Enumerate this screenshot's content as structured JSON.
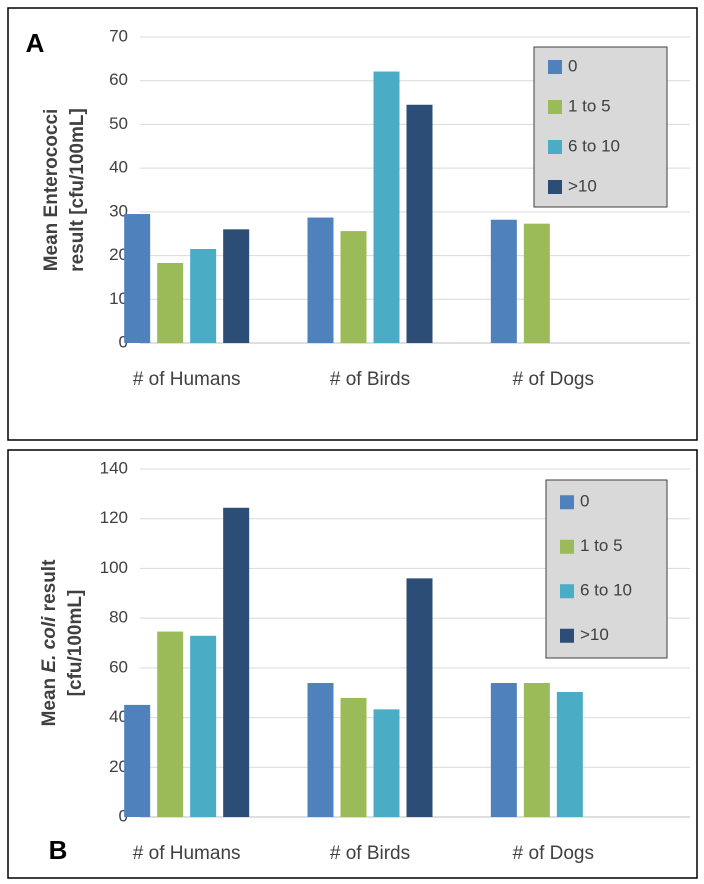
{
  "chart_data": [
    {
      "type": "bar",
      "panel_label": "A",
      "ylabel": [
        [
          {
            "text": "Mean Enterococci"
          }
        ],
        [
          {
            "text": "result [cfu/100mL]"
          }
        ]
      ],
      "categories": [
        "# of Humans",
        "# of Birds",
        "# of Dogs"
      ],
      "series": [
        {
          "name": "0",
          "color": "#4f81bd",
          "values": [
            29.5,
            28.7,
            28.2
          ]
        },
        {
          "name": "1 to 5",
          "color": "#9bbb59",
          "values": [
            18.3,
            25.6,
            27.3
          ]
        },
        {
          "name": "6 to 10",
          "color": "#4bacc6",
          "values": [
            21.5,
            62.1,
            null
          ]
        },
        {
          "name": ">10",
          "color": "#2c4d75",
          "values": [
            26,
            54.5,
            null
          ]
        }
      ],
      "ylim": [
        0,
        70
      ],
      "yticks": [
        0,
        10,
        20,
        30,
        40,
        50,
        60,
        70
      ],
      "grid": true,
      "legend": "upper right"
    },
    {
      "type": "bar",
      "panel_label": "B",
      "ylabel": [
        [
          {
            "text": "Mean "
          },
          {
            "text": "E. coli",
            "italic": true
          },
          {
            "text": " result"
          }
        ],
        [
          {
            "text": "[cfu/100mL]"
          }
        ]
      ],
      "categories": [
        "# of Humans",
        "# of Birds",
        "# of Dogs"
      ],
      "series": [
        {
          "name": "0",
          "color": "#4f81bd",
          "values": [
            45.1,
            53.9,
            53.9
          ]
        },
        {
          "name": "1 to 5",
          "color": "#9bbb59",
          "values": [
            74.6,
            47.9,
            53.9
          ]
        },
        {
          "name": "6 to 10",
          "color": "#4bacc6",
          "values": [
            72.9,
            43.3,
            50.3
          ]
        },
        {
          "name": ">10",
          "color": "#2c4d75",
          "values": [
            124.4,
            96,
            null
          ]
        }
      ],
      "ylim": [
        0,
        140
      ],
      "yticks": [
        0,
        20,
        40,
        60,
        80,
        100,
        120,
        140
      ],
      "grid": true,
      "legend": "upper right"
    }
  ]
}
